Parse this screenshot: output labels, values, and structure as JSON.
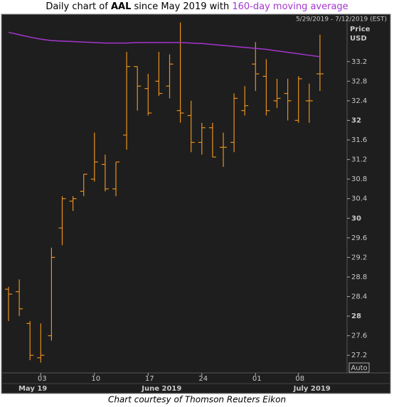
{
  "chart_data": {
    "type": "ohlc",
    "title_parts": [
      "Daily chart of",
      "AAL",
      "since May 2019 with",
      "160-day moving average"
    ],
    "date_range": "5/29/2019 - 7/12/2019 (EST)",
    "axis_title": [
      "Price",
      "USD"
    ],
    "scale_button": "Auto",
    "caption": "Chart courtesy of Thomson Reuters Eikon",
    "color": "#e8901c",
    "ma_color": "#a435cf",
    "categories": [
      null,
      null,
      null,
      "03",
      null,
      null,
      null,
      null,
      "10",
      null,
      null,
      null,
      null,
      "17",
      null,
      null,
      null,
      null,
      "24",
      null,
      null,
      null,
      null,
      "01",
      null,
      null,
      null,
      "08",
      null,
      null
    ],
    "month_labels": [
      null,
      "May 19",
      null,
      null,
      null,
      null,
      null,
      null,
      null,
      null,
      null,
      null,
      null,
      "June 2019",
      null,
      null,
      null,
      null,
      null,
      null,
      null,
      null,
      null,
      null,
      null,
      null,
      null,
      "July 2019",
      null,
      null
    ],
    "open": [
      28.55,
      28.5,
      27.85,
      27.15,
      27.6,
      29.8,
      30.35,
      30.55,
      30.8,
      31.1,
      30.6,
      31.7,
      33.1,
      32.65,
      32.8,
      32.7,
      32.2,
      32.1,
      31.55,
      31.85,
      31.45,
      31.55,
      32.2,
      33.15,
      32.9,
      32.4,
      32.55,
      32.0,
      32.4,
      32.95
    ],
    "high": [
      28.6,
      28.75,
      27.9,
      27.85,
      29.4,
      30.45,
      30.45,
      30.9,
      31.75,
      31.3,
      31.15,
      33.4,
      33.1,
      32.95,
      33.4,
      33.35,
      34.0,
      32.4,
      31.95,
      31.95,
      31.75,
      32.55,
      32.7,
      33.6,
      33.25,
      32.85,
      32.85,
      32.9,
      32.75,
      33.75
    ],
    "low": [
      27.9,
      28.0,
      27.1,
      27.05,
      27.5,
      29.45,
      30.15,
      30.45,
      30.75,
      30.55,
      30.45,
      31.4,
      32.2,
      32.1,
      32.5,
      32.45,
      31.95,
      31.35,
      31.3,
      31.25,
      31.05,
      31.35,
      32.1,
      32.6,
      32.1,
      32.25,
      32.0,
      31.95,
      31.95,
      32.6
    ],
    "close": [
      28.45,
      28.15,
      27.2,
      27.2,
      29.2,
      30.4,
      30.4,
      30.9,
      31.15,
      30.6,
      31.15,
      33.1,
      32.7,
      32.15,
      32.55,
      33.15,
      32.15,
      31.55,
      31.85,
      31.25,
      31.45,
      32.45,
      32.3,
      32.95,
      32.2,
      32.45,
      32.4,
      32.85,
      32.4,
      32.95
    ],
    "moving_average": [
      33.8,
      33.75,
      33.7,
      33.66,
      33.63,
      33.62,
      33.61,
      33.6,
      33.59,
      33.58,
      33.58,
      33.58,
      33.59,
      33.59,
      33.59,
      33.59,
      33.59,
      33.58,
      33.57,
      33.55,
      33.53,
      33.51,
      33.49,
      33.47,
      33.45,
      33.42,
      33.39,
      33.36,
      33.33,
      33.3
    ],
    "ylim": [
      26.84,
      34.14
    ],
    "yticks": [
      27.2,
      27.6,
      28,
      28.4,
      28.8,
      29.2,
      29.6,
      30,
      30.4,
      30.8,
      31.2,
      31.6,
      32,
      32.4,
      32.8,
      33.2
    ]
  }
}
